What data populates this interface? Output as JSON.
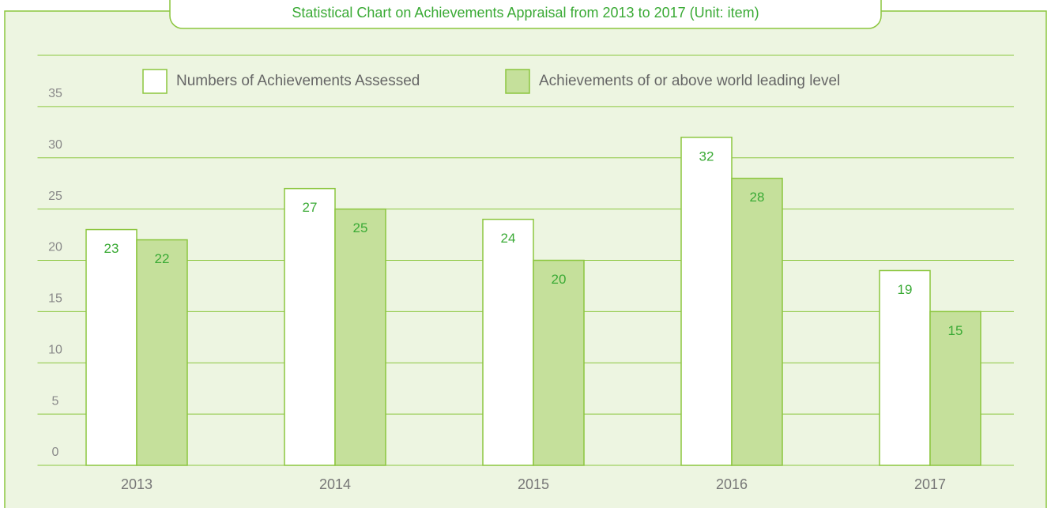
{
  "chart_data": {
    "type": "bar",
    "title": "Statistical Chart on Achievements Appraisal from 2013 to 2017 (Unit: item)",
    "categories": [
      "2013",
      "2014",
      "2015",
      "2016",
      "2017"
    ],
    "series": [
      {
        "name": "Numbers of Achievements Assessed",
        "color": "#ffffff",
        "values": [
          23,
          27,
          24,
          32,
          19
        ]
      },
      {
        "name": "Achievements of or above world leading level",
        "color": "#c5e09b",
        "values": [
          22,
          25,
          20,
          28,
          15
        ]
      }
    ],
    "ylim": [
      0,
      40
    ],
    "yticks": [
      0,
      5,
      10,
      15,
      20,
      25,
      30,
      35
    ],
    "grid": true
  }
}
